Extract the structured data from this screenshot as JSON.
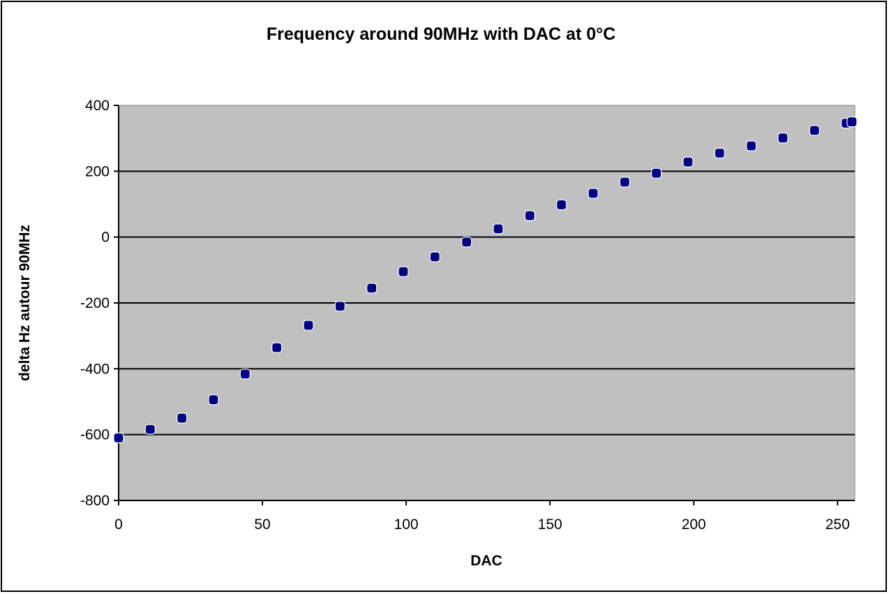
{
  "chart_data": {
    "type": "scatter",
    "title": "Frequency around 90MHz with DAC at 0°C",
    "xlabel": "DAC",
    "ylabel": "delta Hz autour 90MHz",
    "xlim": [
      0,
      256
    ],
    "ylim": [
      -800,
      400
    ],
    "xticks": [
      0,
      50,
      100,
      150,
      200,
      250
    ],
    "yticks": [
      400,
      200,
      0,
      -200,
      -400,
      -600,
      -800
    ],
    "xtick_labels": [
      "0",
      "50",
      "100",
      "150",
      "200",
      "250"
    ],
    "ytick_labels": [
      "400",
      "200",
      "0",
      "-200",
      "-400",
      "-600",
      "-800"
    ],
    "grid": "horizontal major gridlines",
    "plot_background": "#c0c0c0",
    "marker_color": "#000080",
    "series": [
      {
        "x": [
          0,
          11,
          22,
          33,
          44,
          55,
          66,
          77,
          88,
          99,
          110,
          121,
          132,
          143,
          154,
          165,
          176,
          187,
          198,
          209,
          220,
          231,
          242,
          253,
          255
        ],
        "y": [
          -610,
          -584,
          -550,
          -494,
          -416,
          -336,
          -268,
          -210,
          -155,
          -105,
          -60,
          -15,
          25,
          65,
          98,
          133,
          167,
          194,
          228,
          255,
          277,
          301,
          324,
          346,
          350
        ]
      }
    ]
  }
}
